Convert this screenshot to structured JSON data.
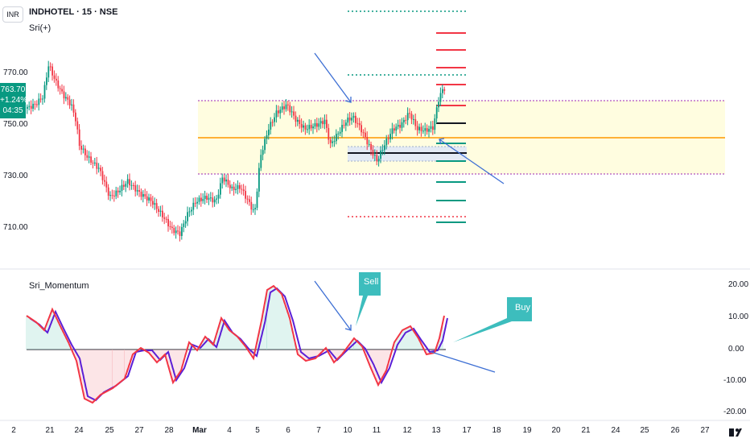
{
  "header": {
    "currency_button": "INR",
    "symbol": "INDHOTEL · 15 · NSE",
    "study": "Sri(+)"
  },
  "price_axis_left": {
    "labels": [
      "770.00",
      "750.00",
      "730.00",
      "710.00"
    ],
    "current_price": "763.70",
    "change": "+1.24%",
    "countdown": "04:35"
  },
  "indicator": {
    "title": "Sri_Momentum",
    "axis_labels": [
      "20.00",
      "10.00",
      "0.00",
      "-10.00",
      "-20.00"
    ]
  },
  "callouts": {
    "sell": "Sell",
    "buy": "Buy"
  },
  "time_axis": {
    "labels": [
      "2",
      "21",
      "24",
      "25",
      "27",
      "28",
      "Mar",
      "4",
      "5",
      "6",
      "7",
      "10",
      "11",
      "12",
      "13",
      "17",
      "18",
      "19",
      "20",
      "21",
      "24",
      "25",
      "26",
      "27"
    ]
  },
  "colors": {
    "up": "#089981",
    "down": "#f23645",
    "zone_fill": "#fffde0",
    "orange_line": "#ff9800",
    "purple_line": "#9c27b0",
    "arrow": "#3d6fd4",
    "callout": "#3dbdbd",
    "fast_line": "#f23645",
    "slow_line": "#5b1fd6"
  }
}
